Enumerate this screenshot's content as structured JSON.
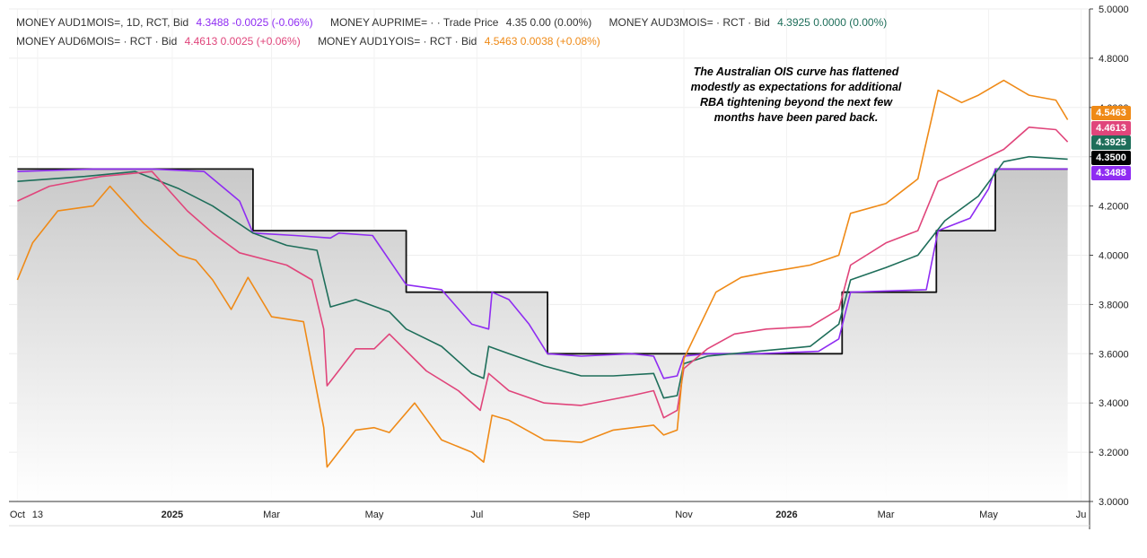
{
  "legend": [
    {
      "label": "MONEY AUD1MOIS=, 1D, RCT, Bid",
      "values": "4.3488  -0.0025 (-0.06%)",
      "color": "#8f2cf2"
    },
    {
      "label": "MONEY AUPRIME= ·  · Trade Price",
      "values": "4.35  0.00 (0.00%)",
      "color": "#222222"
    },
    {
      "label": "MONEY AUD3MOIS= · RCT · Bid",
      "values": "4.3925  0.0000 (0.00%)",
      "color": "#1e6e5a"
    },
    {
      "label": "MONEY AUD6MOIS= · RCT · Bid",
      "values": "4.4613  0.0025 (+0.06%)",
      "color": "#e0457b"
    },
    {
      "label": "MONEY AUD1YOIS= · RCT · Bid",
      "values": "4.5463  0.0038 (+0.08%)",
      "color": "#ef8a17"
    }
  ],
  "annotation": [
    "The Australian OIS curve has flattened",
    "modestly as expectations for additional",
    "RBA tightening beyond the next few",
    "months have been pared back."
  ],
  "price_tags": [
    {
      "text": "4.5463",
      "color": "#ef8a17",
      "value": 4.5463
    },
    {
      "text": "4.4613",
      "color": "#e0457b",
      "value": 4.4613
    },
    {
      "text": "4.3925",
      "color": "#1e6e5a",
      "value": 4.3925
    },
    {
      "text": "4.3500",
      "color": "#000000",
      "value": 4.35
    },
    {
      "text": "4.3488",
      "color": "#8f2cf2",
      "value": 4.3488
    }
  ],
  "chart_data": {
    "type": "line",
    "ylim": [
      3.0,
      5.0
    ],
    "y_ticks": [
      "3.0000",
      "3.2000",
      "3.4000",
      "3.6000",
      "3.8000",
      "4.0000",
      "4.2000",
      "4.4000",
      "4.6000",
      "4.8000",
      "5.0000"
    ],
    "x_ticks": [
      {
        "label": "Oct",
        "date": "2024-10-01"
      },
      {
        "label": "13",
        "date": "2024-10-13"
      },
      {
        "label": "2025",
        "date": "2025-01-01"
      },
      {
        "label": "Mar",
        "date": "2025-03-01"
      },
      {
        "label": "May",
        "date": "2025-05-01"
      },
      {
        "label": "Jul",
        "date": "2025-07-01"
      },
      {
        "label": "Sep",
        "date": "2025-09-01"
      },
      {
        "label": "Nov",
        "date": "2025-11-01"
      },
      {
        "label": "2026",
        "date": "2026-01-01"
      },
      {
        "label": "Mar",
        "date": "2026-03-01"
      },
      {
        "label": "May",
        "date": "2026-05-01"
      },
      {
        "label": "Ju",
        "date": "2026-06-25"
      }
    ],
    "series": [
      {
        "name": "MONEY AUPRIME=",
        "color": "#111111",
        "step": true,
        "area": true,
        "points": [
          [
            "2024-10-01",
            4.35
          ],
          [
            "2025-02-18",
            4.35
          ],
          [
            "2025-02-18",
            4.1
          ],
          [
            "2025-05-20",
            4.1
          ],
          [
            "2025-05-20",
            3.85
          ],
          [
            "2025-08-12",
            3.85
          ],
          [
            "2025-08-12",
            3.6
          ],
          [
            "2026-02-03",
            3.6
          ],
          [
            "2026-02-03",
            3.85
          ],
          [
            "2026-03-31",
            3.85
          ],
          [
            "2026-03-31",
            4.1
          ],
          [
            "2026-05-05",
            4.1
          ],
          [
            "2026-05-05",
            4.35
          ],
          [
            "2026-06-17",
            4.35
          ]
        ]
      },
      {
        "name": "MONEY AUD1MOIS=",
        "color": "#8f2cf2",
        "points": [
          [
            "2024-10-01",
            4.34
          ],
          [
            "2024-11-15",
            4.35
          ],
          [
            "2024-12-20",
            4.35
          ],
          [
            "2025-01-20",
            4.34
          ],
          [
            "2025-02-10",
            4.22
          ],
          [
            "2025-02-18",
            4.09
          ],
          [
            "2025-03-15",
            4.08
          ],
          [
            "2025-04-05",
            4.07
          ],
          [
            "2025-04-10",
            4.09
          ],
          [
            "2025-04-30",
            4.08
          ],
          [
            "2025-05-20",
            3.88
          ],
          [
            "2025-06-10",
            3.86
          ],
          [
            "2025-06-28",
            3.72
          ],
          [
            "2025-07-08",
            3.7
          ],
          [
            "2025-07-10",
            3.85
          ],
          [
            "2025-07-20",
            3.82
          ],
          [
            "2025-08-01",
            3.72
          ],
          [
            "2025-08-12",
            3.6
          ],
          [
            "2025-09-01",
            3.59
          ],
          [
            "2025-10-01",
            3.6
          ],
          [
            "2025-10-14",
            3.59
          ],
          [
            "2025-10-20",
            3.5
          ],
          [
            "2025-10-28",
            3.51
          ],
          [
            "2025-11-01",
            3.59
          ],
          [
            "2025-11-15",
            3.6
          ],
          [
            "2025-12-15",
            3.6
          ],
          [
            "2026-01-20",
            3.61
          ],
          [
            "2026-02-01",
            3.66
          ],
          [
            "2026-02-08",
            3.85
          ],
          [
            "2026-03-25",
            3.86
          ],
          [
            "2026-04-01",
            4.1
          ],
          [
            "2026-04-20",
            4.15
          ],
          [
            "2026-05-01",
            4.27
          ],
          [
            "2026-05-05",
            4.35
          ],
          [
            "2026-06-17",
            4.35
          ]
        ]
      },
      {
        "name": "MONEY AUD3MOIS=",
        "color": "#1e6e5a",
        "points": [
          [
            "2024-10-01",
            4.3
          ],
          [
            "2024-11-10",
            4.32
          ],
          [
            "2024-12-10",
            4.34
          ],
          [
            "2025-01-05",
            4.27
          ],
          [
            "2025-01-25",
            4.2
          ],
          [
            "2025-02-18",
            4.09
          ],
          [
            "2025-03-10",
            4.04
          ],
          [
            "2025-03-28",
            4.02
          ],
          [
            "2025-04-05",
            3.79
          ],
          [
            "2025-04-20",
            3.82
          ],
          [
            "2025-05-10",
            3.77
          ],
          [
            "2025-05-20",
            3.7
          ],
          [
            "2025-06-10",
            3.63
          ],
          [
            "2025-06-28",
            3.52
          ],
          [
            "2025-07-05",
            3.5
          ],
          [
            "2025-07-08",
            3.63
          ],
          [
            "2025-07-20",
            3.6
          ],
          [
            "2025-08-10",
            3.55
          ],
          [
            "2025-09-01",
            3.51
          ],
          [
            "2025-09-20",
            3.51
          ],
          [
            "2025-10-14",
            3.52
          ],
          [
            "2025-10-20",
            3.42
          ],
          [
            "2025-10-28",
            3.43
          ],
          [
            "2025-11-01",
            3.56
          ],
          [
            "2025-11-15",
            3.59
          ],
          [
            "2025-12-15",
            3.61
          ],
          [
            "2026-01-15",
            3.63
          ],
          [
            "2026-02-01",
            3.72
          ],
          [
            "2026-02-08",
            3.9
          ],
          [
            "2026-03-01",
            3.95
          ],
          [
            "2026-03-20",
            4.0
          ],
          [
            "2026-04-05",
            4.14
          ],
          [
            "2026-04-25",
            4.24
          ],
          [
            "2026-05-10",
            4.38
          ],
          [
            "2026-05-25",
            4.4
          ],
          [
            "2026-06-17",
            4.39
          ]
        ]
      },
      {
        "name": "MONEY AUD6MOIS=",
        "color": "#e0457b",
        "points": [
          [
            "2024-10-01",
            4.22
          ],
          [
            "2024-10-20",
            4.28
          ],
          [
            "2024-11-20",
            4.32
          ],
          [
            "2024-12-20",
            4.34
          ],
          [
            "2025-01-10",
            4.18
          ],
          [
            "2025-01-25",
            4.09
          ],
          [
            "2025-02-10",
            4.01
          ],
          [
            "2025-03-10",
            3.96
          ],
          [
            "2025-03-25",
            3.9
          ],
          [
            "2025-04-01",
            3.7
          ],
          [
            "2025-04-03",
            3.47
          ],
          [
            "2025-04-20",
            3.62
          ],
          [
            "2025-05-01",
            3.62
          ],
          [
            "2025-05-10",
            3.68
          ],
          [
            "2025-06-01",
            3.53
          ],
          [
            "2025-06-20",
            3.45
          ],
          [
            "2025-07-03",
            3.37
          ],
          [
            "2025-07-08",
            3.52
          ],
          [
            "2025-07-20",
            3.45
          ],
          [
            "2025-08-10",
            3.4
          ],
          [
            "2025-09-01",
            3.39
          ],
          [
            "2025-10-01",
            3.43
          ],
          [
            "2025-10-14",
            3.45
          ],
          [
            "2025-10-20",
            3.34
          ],
          [
            "2025-10-28",
            3.37
          ],
          [
            "2025-11-01",
            3.54
          ],
          [
            "2025-11-15",
            3.62
          ],
          [
            "2025-12-01",
            3.68
          ],
          [
            "2025-12-20",
            3.7
          ],
          [
            "2026-01-15",
            3.71
          ],
          [
            "2026-02-01",
            3.78
          ],
          [
            "2026-02-08",
            3.96
          ],
          [
            "2026-03-01",
            4.05
          ],
          [
            "2026-03-20",
            4.1
          ],
          [
            "2026-04-01",
            4.3
          ],
          [
            "2026-04-25",
            4.38
          ],
          [
            "2026-05-10",
            4.43
          ],
          [
            "2026-05-25",
            4.52
          ],
          [
            "2026-06-10",
            4.51
          ],
          [
            "2026-06-17",
            4.46
          ]
        ]
      },
      {
        "name": "MONEY AUD1YOIS=",
        "color": "#ef8a17",
        "points": [
          [
            "2024-10-01",
            3.9
          ],
          [
            "2024-10-10",
            4.05
          ],
          [
            "2024-10-25",
            4.18
          ],
          [
            "2024-11-15",
            4.2
          ],
          [
            "2024-11-25",
            4.28
          ],
          [
            "2024-12-15",
            4.13
          ],
          [
            "2025-01-05",
            4.0
          ],
          [
            "2025-01-15",
            3.98
          ],
          [
            "2025-01-25",
            3.9
          ],
          [
            "2025-02-05",
            3.78
          ],
          [
            "2025-02-15",
            3.91
          ],
          [
            "2025-03-01",
            3.75
          ],
          [
            "2025-03-20",
            3.73
          ],
          [
            "2025-04-01",
            3.3
          ],
          [
            "2025-04-03",
            3.14
          ],
          [
            "2025-04-20",
            3.29
          ],
          [
            "2025-05-01",
            3.3
          ],
          [
            "2025-05-10",
            3.28
          ],
          [
            "2025-05-25",
            3.4
          ],
          [
            "2025-06-10",
            3.25
          ],
          [
            "2025-06-28",
            3.2
          ],
          [
            "2025-07-05",
            3.16
          ],
          [
            "2025-07-10",
            3.35
          ],
          [
            "2025-07-20",
            3.33
          ],
          [
            "2025-08-10",
            3.25
          ],
          [
            "2025-09-01",
            3.24
          ],
          [
            "2025-09-20",
            3.29
          ],
          [
            "2025-10-14",
            3.31
          ],
          [
            "2025-10-20",
            3.27
          ],
          [
            "2025-10-28",
            3.29
          ],
          [
            "2025-11-01",
            3.58
          ],
          [
            "2025-11-20",
            3.85
          ],
          [
            "2025-12-05",
            3.91
          ],
          [
            "2025-12-20",
            3.93
          ],
          [
            "2026-01-15",
            3.96
          ],
          [
            "2026-02-01",
            4.0
          ],
          [
            "2026-02-08",
            4.17
          ],
          [
            "2026-03-01",
            4.21
          ],
          [
            "2026-03-20",
            4.31
          ],
          [
            "2026-04-01",
            4.67
          ],
          [
            "2026-04-15",
            4.62
          ],
          [
            "2026-04-25",
            4.65
          ],
          [
            "2026-05-10",
            4.71
          ],
          [
            "2026-05-25",
            4.65
          ],
          [
            "2026-06-10",
            4.63
          ],
          [
            "2026-06-17",
            4.55
          ]
        ]
      }
    ]
  }
}
